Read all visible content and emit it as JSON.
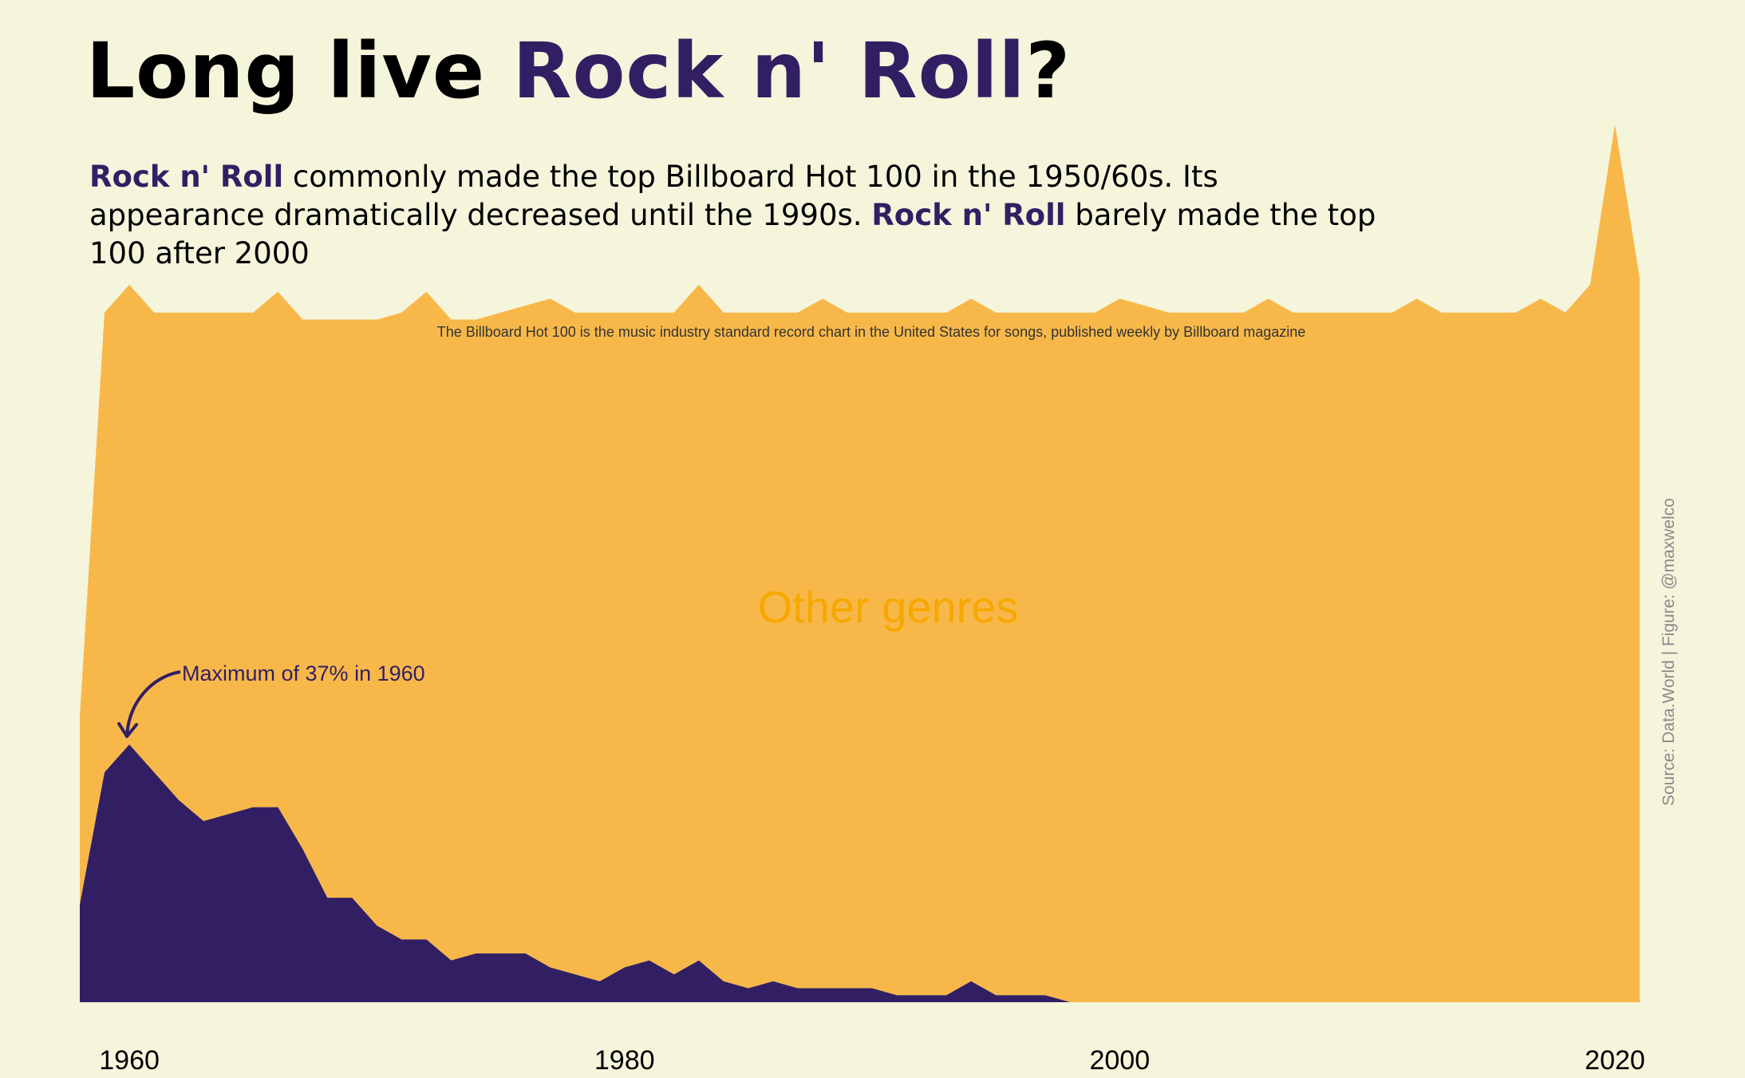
{
  "title": {
    "prefix": "Long live ",
    "highlight": "Rock n' Roll",
    "suffix": "?"
  },
  "subtitle": {
    "part1_bold": "Rock n' Roll",
    "part2": " commonly made the top Billboard Hot 100 in the 1950/60s. Its appearance dramatically decreased until the 1990s. ",
    "part3_bold": "Rock n' Roll",
    "part4": " barely made the top 100 after 2000"
  },
  "note": "The Billboard Hot 100 is the music industry standard record chart in the United States for songs, published weekly by Billboard magazine",
  "caption": "Source: Data.World | Figure: @maxwelco",
  "colors": {
    "background": "#f5f5dc",
    "rock": "#321f63",
    "other": "#f8b849",
    "other_label": "#f6a800"
  },
  "chart_data": {
    "type": "area",
    "stacked": true,
    "x": [
      1958,
      1959,
      1960,
      1961,
      1962,
      1963,
      1964,
      1965,
      1966,
      1967,
      1968,
      1969,
      1970,
      1971,
      1972,
      1973,
      1974,
      1975,
      1976,
      1977,
      1978,
      1979,
      1980,
      1981,
      1982,
      1983,
      1984,
      1985,
      1986,
      1987,
      1988,
      1989,
      1990,
      1991,
      1992,
      1993,
      1994,
      1995,
      1996,
      1997,
      1998,
      1999,
      2000,
      2001,
      2002,
      2003,
      2004,
      2005,
      2006,
      2007,
      2008,
      2009,
      2010,
      2011,
      2012,
      2013,
      2014,
      2015,
      2016,
      2017,
      2018,
      2019,
      2020,
      2021
    ],
    "series": [
      {
        "name": "Rock n' Roll",
        "values": [
          14,
          33,
          37,
          33,
          29,
          26,
          27,
          28,
          28,
          22,
          15,
          15,
          11,
          9,
          9,
          6,
          7,
          7,
          7,
          5,
          4,
          3,
          5,
          6,
          4,
          6,
          3,
          2,
          3,
          2,
          2,
          2,
          2,
          1,
          1,
          1,
          3,
          1,
          1,
          1,
          0,
          0,
          0,
          0,
          0,
          0,
          0,
          0,
          0,
          0,
          0,
          0,
          0,
          0,
          0,
          0,
          0,
          0,
          0,
          0,
          0,
          0,
          0,
          0
        ]
      },
      {
        "name": "Other genres",
        "values": [
          27,
          66,
          66,
          66,
          70,
          73,
          72,
          71,
          74,
          76,
          83,
          83,
          87,
          90,
          93,
          92,
          91,
          92,
          93,
          96,
          95,
          96,
          94,
          93,
          95,
          97,
          96,
          97,
          96,
          97,
          99,
          97,
          97,
          98,
          98,
          98,
          98,
          98,
          98,
          98,
          99,
          99,
          101,
          100,
          99,
          99,
          99,
          99,
          101,
          99,
          99,
          99,
          99,
          99,
          101,
          99,
          99,
          99,
          99,
          101,
          99,
          103,
          126,
          104
        ]
      }
    ],
    "label_inside": "Other genres",
    "annotation": {
      "text": "Maximum of 37% in 1960",
      "x": 1960,
      "y": 37
    },
    "xlim": [
      1958,
      2021
    ],
    "ylim": [
      0,
      137
    ],
    "x_ticks": [
      1960,
      1980,
      2000,
      2020
    ]
  }
}
